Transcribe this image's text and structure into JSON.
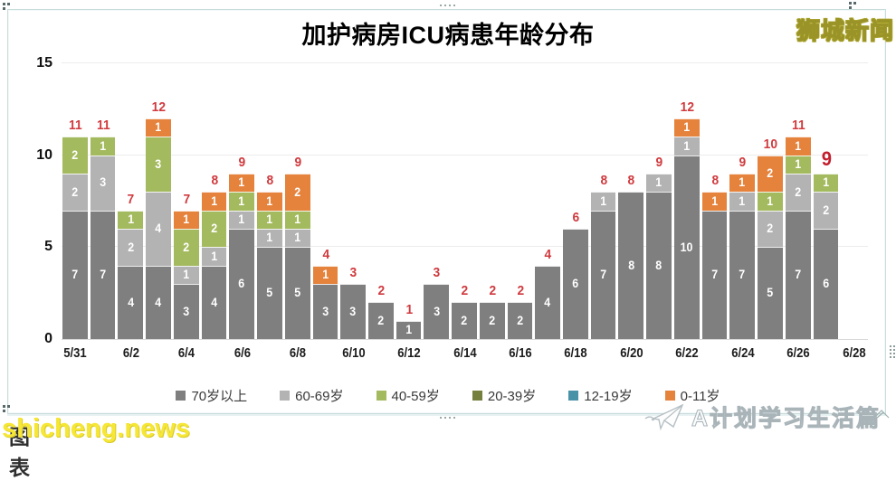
{
  "header": {
    "title": "加护病房ICU病患年龄分布",
    "logo": "狮城新闻"
  },
  "watermark": {
    "dark_text": "图表",
    "site_text": "shicheng.news"
  },
  "footer_brand": {
    "label": "A计划学习生活篇",
    "icon": "paper-plane-icon"
  },
  "chart_data": {
    "type": "bar",
    "stacked": true,
    "title": "加护病房ICU病患年龄分布",
    "x": [
      "5/31",
      "6/1",
      "6/2",
      "6/3",
      "6/4",
      "6/5",
      "6/6",
      "6/7",
      "6/8",
      "6/9",
      "6/10",
      "6/11",
      "6/12",
      "6/13",
      "6/14",
      "6/15",
      "6/16",
      "6/17",
      "6/18",
      "6/19",
      "6/20",
      "6/21",
      "6/22",
      "6/23",
      "6/24",
      "6/25",
      "6/26",
      "6/27"
    ],
    "x_tick_labels": [
      "5/31",
      "6/2",
      "6/4",
      "6/6",
      "6/8",
      "6/10",
      "6/12",
      "6/14",
      "6/16",
      "6/18",
      "6/20",
      "6/22",
      "6/24",
      "6/26",
      "6/28"
    ],
    "x_slots": 29,
    "y_ticks": [
      0,
      5,
      10,
      15
    ],
    "ylim": [
      0,
      15
    ],
    "grid": "horizontal",
    "legend_position": "bottom",
    "series": [
      {
        "name": "70岁以上",
        "color": "#7f7f7f",
        "values": [
          7,
          7,
          4,
          4,
          3,
          4,
          6,
          5,
          5,
          3,
          3,
          2,
          1,
          3,
          2,
          2,
          2,
          4,
          6,
          7,
          8,
          8,
          10,
          7,
          7,
          5,
          7,
          6
        ]
      },
      {
        "name": "60-69岁",
        "color": "#b3b3b3",
        "values": [
          2,
          3,
          2,
          4,
          1,
          1,
          1,
          1,
          1,
          0,
          0,
          0,
          0,
          0,
          0,
          0,
          0,
          0,
          0,
          1,
          0,
          1,
          1,
          0,
          1,
          2,
          2,
          2
        ]
      },
      {
        "name": "40-59岁",
        "color": "#a4ba5e",
        "values": [
          2,
          1,
          1,
          3,
          2,
          2,
          1,
          1,
          1,
          0,
          0,
          0,
          0,
          0,
          0,
          0,
          0,
          0,
          0,
          0,
          0,
          0,
          0,
          0,
          0,
          1,
          1,
          1
        ]
      },
      {
        "name": "20-39岁",
        "color": "#75803f",
        "values": [
          0,
          0,
          0,
          0,
          0,
          0,
          0,
          0,
          0,
          0,
          0,
          0,
          0,
          0,
          0,
          0,
          0,
          0,
          0,
          0,
          0,
          0,
          0,
          0,
          0,
          0,
          0,
          0
        ]
      },
      {
        "name": "12-19岁",
        "color": "#4a92a8",
        "values": [
          0,
          0,
          0,
          0,
          0,
          0,
          0,
          0,
          0,
          0,
          0,
          0,
          0,
          0,
          0,
          0,
          0,
          0,
          0,
          0,
          0,
          0,
          0,
          0,
          0,
          0,
          0,
          0
        ]
      },
      {
        "name": "0-11岁",
        "color": "#e5823c",
        "values": [
          0,
          0,
          0,
          1,
          1,
          1,
          1,
          1,
          2,
          1,
          0,
          0,
          0,
          0,
          0,
          0,
          0,
          0,
          0,
          0,
          0,
          0,
          1,
          1,
          1,
          2,
          1,
          0
        ]
      }
    ],
    "totals": [
      11,
      11,
      7,
      12,
      7,
      8,
      9,
      8,
      9,
      4,
      3,
      2,
      1,
      3,
      2,
      2,
      2,
      4,
      6,
      8,
      8,
      9,
      12,
      8,
      9,
      10,
      11,
      9
    ],
    "highlight_last_total": true,
    "total_label_color": "#d03a3e"
  }
}
